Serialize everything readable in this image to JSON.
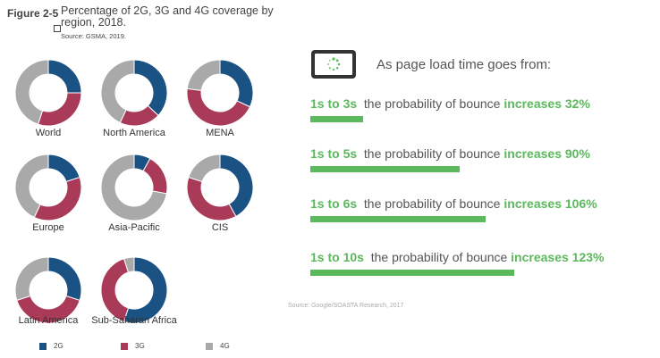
{
  "figure": {
    "label": "Figure 2-5",
    "title": "Percentage of 2G, 3G and 4G coverage by region, 2018.",
    "source": "Source: GSMA, 2019."
  },
  "chart_data": [
    {
      "type": "pie",
      "style": "donut",
      "categories": [
        "2G",
        "3G",
        "4G"
      ],
      "colors": [
        "#1a5284",
        "#a93a58",
        "#a9a9a9"
      ],
      "regions": [
        {
          "name": "World",
          "values": [
            25,
            30,
            45
          ]
        },
        {
          "name": "North America",
          "values": [
            37,
            20,
            43
          ]
        },
        {
          "name": "MENA",
          "values": [
            32,
            45,
            23
          ]
        },
        {
          "name": "Europe",
          "values": [
            20,
            37,
            43
          ]
        },
        {
          "name": "Asia-Pacific",
          "values": [
            8,
            20,
            72
          ]
        },
        {
          "name": "CIS",
          "values": [
            42,
            38,
            20
          ]
        },
        {
          "name": "Latin America",
          "values": [
            30,
            40,
            30
          ]
        },
        {
          "name": "Sub-Saharan Africa",
          "values": [
            55,
            40,
            5
          ]
        }
      ],
      "legend": [
        "2G",
        "3G",
        "4G"
      ],
      "legend_position": "bottom"
    },
    {
      "type": "bar",
      "orientation": "horizontal",
      "title": "As page load time goes from:",
      "categories": [
        "1s to 3s",
        "1s to 5s",
        "1s to 6s",
        "1s to 10s"
      ],
      "values": [
        32,
        90,
        106,
        123
      ],
      "unit": "%",
      "color": "#5cb85c"
    }
  ],
  "bounce": {
    "title": "As page load time goes from:",
    "phrase": "the probability of bounce",
    "rows": [
      {
        "range": "1s to 3s",
        "inc": "increases 32%"
      },
      {
        "range": "1s to 5s",
        "inc": "increases 90%"
      },
      {
        "range": "1s to 6s",
        "inc": "increases 106%"
      },
      {
        "range": "1s to 10s",
        "inc": "increases 123%"
      }
    ],
    "source": "Source: Google/SOASTA Research, 2017"
  },
  "icons": {
    "phone": "phone-loading-icon"
  }
}
